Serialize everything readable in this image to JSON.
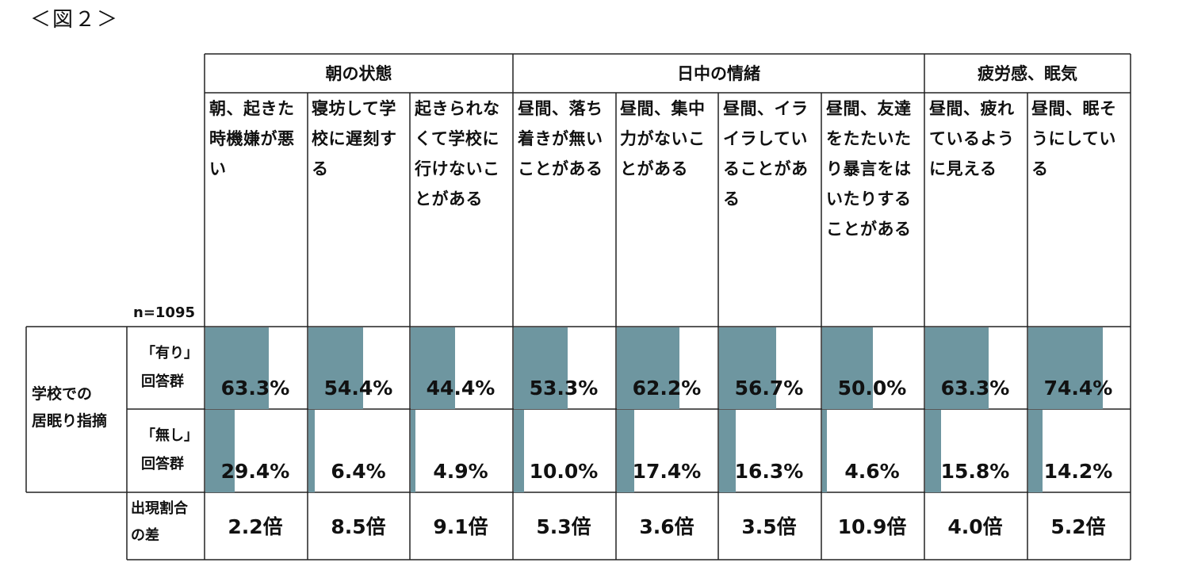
{
  "figure_label": "＜図２＞",
  "sample_size": "n=1095",
  "groups": [
    "朝の状態",
    "日中の情緒",
    "疲労感、眠気"
  ],
  "row_header": [
    "学校での",
    "居眠り指摘"
  ],
  "yes_group_label": [
    "「有り」",
    "回答群"
  ],
  "no_group_label": [
    "「無し」",
    "回答群"
  ],
  "diff_label": [
    "出現割合",
    "の差"
  ],
  "bar_color": "#6e96a0",
  "chart_data": {
    "type": "table",
    "value_unit": "%",
    "max": 100,
    "columns": [
      {
        "group": "朝の状態",
        "label": "朝、起きた時機嫌が悪い",
        "yes": 63.3,
        "no": 29.4,
        "yes_text": "63.3%",
        "no_text": "29.4%",
        "ratio": "2.2倍"
      },
      {
        "group": "朝の状態",
        "label": "寝坊して学校に遅刻する",
        "yes": 54.4,
        "no": 6.4,
        "yes_text": "54.4%",
        "no_text": "6.4%",
        "ratio": "8.5倍"
      },
      {
        "group": "朝の状態",
        "label": "起きられなくて学校に行けないことがある",
        "yes": 44.4,
        "no": 4.9,
        "yes_text": "44.4%",
        "no_text": "4.9%",
        "ratio": "9.1倍"
      },
      {
        "group": "日中の情緒",
        "label": "昼間、落ち着きが無いことがある",
        "yes": 53.3,
        "no": 10.0,
        "yes_text": "53.3%",
        "no_text": "10.0%",
        "ratio": "5.3倍"
      },
      {
        "group": "日中の情緒",
        "label": "昼間、集中力がないことがある",
        "yes": 62.2,
        "no": 17.4,
        "yes_text": "62.2%",
        "no_text": "17.4%",
        "ratio": "3.6倍"
      },
      {
        "group": "日中の情緒",
        "label": "昼間、イライラしていることがある",
        "yes": 56.7,
        "no": 16.3,
        "yes_text": "56.7%",
        "no_text": "16.3%",
        "ratio": "3.5倍"
      },
      {
        "group": "日中の情緒",
        "label": "昼間、友達をたたいたり暴言をはいたりすることがある",
        "yes": 50.0,
        "no": 4.6,
        "yes_text": "50.0%",
        "no_text": "4.6%",
        "ratio": "10.9倍"
      },
      {
        "group": "疲労感、眠気",
        "label": "昼間、疲れているように見える",
        "yes": 63.3,
        "no": 15.8,
        "yes_text": "63.3%",
        "no_text": "15.8%",
        "ratio": "4.0倍"
      },
      {
        "group": "疲労感、眠気",
        "label": "昼間、眠そうにしている",
        "yes": 74.4,
        "no": 14.2,
        "yes_text": "74.4%",
        "no_text": "14.2%",
        "ratio": "5.2倍"
      }
    ]
  }
}
